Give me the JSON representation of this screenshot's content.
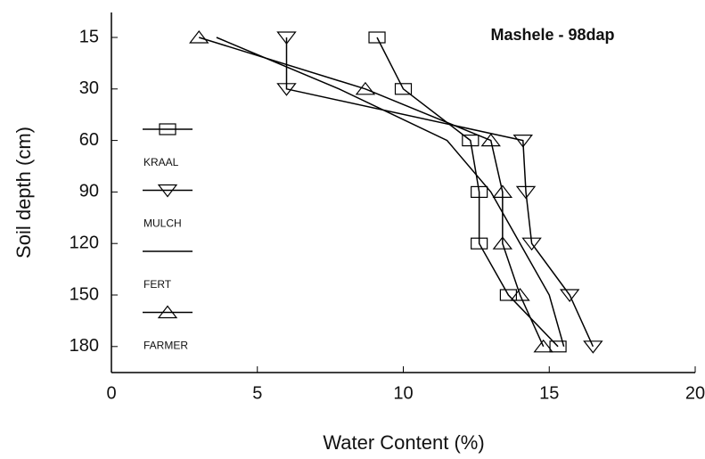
{
  "chart_data": {
    "type": "line",
    "title": "Mashele - 98dap",
    "x_label": "Water Content (%)",
    "y_label": "Soil depth (cm)",
    "categories": [
      "15",
      "30",
      "60",
      "90",
      "120",
      "150",
      "180"
    ],
    "xlim": [
      0,
      20
    ],
    "xticks": [
      0,
      5,
      10,
      15,
      20
    ],
    "series": [
      {
        "name": "KRAAL",
        "color": "#000000",
        "marker": "square",
        "values": [
          9.1,
          10.0,
          12.3,
          12.6,
          12.6,
          13.6,
          15.3
        ]
      },
      {
        "name": "MULCH",
        "color": "#000000",
        "marker": "triangle-down",
        "values": [
          6.0,
          6.0,
          14.1,
          14.2,
          14.4,
          15.7,
          16.5
        ]
      },
      {
        "name": "FERT",
        "color": "#000000",
        "marker": "none",
        "values": [
          3.6,
          7.8,
          11.5,
          13.0,
          14.0,
          15.0,
          15.5
        ]
      },
      {
        "name": "FARMER",
        "color": "#000000",
        "marker": "triangle-up",
        "values": [
          3.0,
          8.7,
          13.0,
          13.4,
          13.4,
          14.0,
          14.8
        ]
      }
    ]
  }
}
